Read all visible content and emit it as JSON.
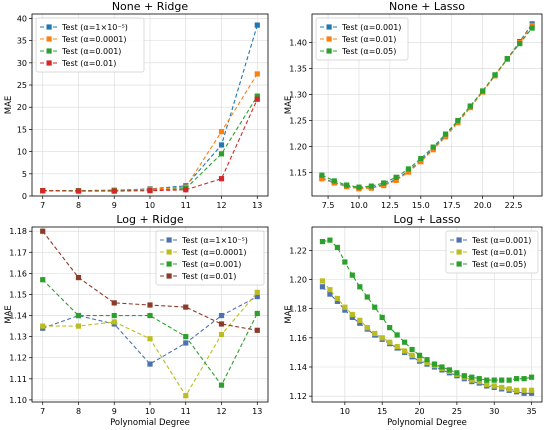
{
  "chart_data": [
    {
      "type": "line",
      "title": "None + Ridge",
      "xlabel": "",
      "ylabel": "MAE",
      "xlim": [
        6.7,
        13.3
      ],
      "ylim": [
        0,
        41
      ],
      "xticks": [
        7,
        8,
        9,
        10,
        11,
        12,
        13
      ],
      "yticks": [
        0,
        5,
        10,
        15,
        20,
        25,
        30,
        35,
        40
      ],
      "tick_decimals": [
        0,
        0
      ],
      "grid": true,
      "legend": "top-left",
      "series": [
        {
          "name": "Test (α=1×10⁻⁵)",
          "color": "#1f77b4",
          "x": [
            7,
            8,
            9,
            10,
            11,
            12,
            13
          ],
          "y": [
            1.2,
            1.2,
            1.3,
            1.6,
            2.3,
            11.5,
            38.5
          ]
        },
        {
          "name": "Test (α=0.0001)",
          "color": "#ff7f0e",
          "x": [
            7,
            8,
            9,
            10,
            11,
            12,
            13
          ],
          "y": [
            1.2,
            1.2,
            1.3,
            1.5,
            2.0,
            14.5,
            27.5
          ]
        },
        {
          "name": "Test (α=0.001)",
          "color": "#2ca02c",
          "x": [
            7,
            8,
            9,
            10,
            11,
            12,
            13
          ],
          "y": [
            1.2,
            1.2,
            1.2,
            1.3,
            1.7,
            9.5,
            22.5
          ]
        },
        {
          "name": "Test (α=0.01)",
          "color": "#d62728",
          "x": [
            7,
            8,
            9,
            10,
            11,
            12,
            13
          ],
          "y": [
            1.2,
            1.1,
            1.1,
            1.2,
            1.4,
            3.9,
            21.8
          ]
        }
      ]
    },
    {
      "type": "line",
      "title": "None + Lasso",
      "xlabel": "",
      "ylabel": "MAE",
      "xlim": [
        6.2,
        24.8
      ],
      "ylim": [
        1.105,
        1.455
      ],
      "xticks": [
        7.5,
        10.0,
        12.5,
        15.0,
        17.5,
        20.0,
        22.5
      ],
      "yticks": [
        1.15,
        1.2,
        1.25,
        1.3,
        1.35,
        1.4
      ],
      "tick_decimals": [
        1,
        2
      ],
      "grid": true,
      "legend": "top-left",
      "series": [
        {
          "name": "Test (α=0.001)",
          "color": "#1f77b4",
          "x": [
            7,
            8,
            9,
            10,
            11,
            12,
            13,
            14,
            15,
            16,
            17,
            18,
            19,
            20,
            21,
            22,
            23,
            24
          ],
          "y": [
            1.14,
            1.131,
            1.124,
            1.12,
            1.121,
            1.127,
            1.137,
            1.153,
            1.173,
            1.196,
            1.221,
            1.248,
            1.276,
            1.306,
            1.337,
            1.369,
            1.402,
            1.436
          ]
        },
        {
          "name": "Test (α=0.01)",
          "color": "#ff7f0e",
          "x": [
            7,
            8,
            9,
            10,
            11,
            12,
            13,
            14,
            15,
            16,
            17,
            18,
            19,
            20,
            21,
            22,
            23,
            24
          ],
          "y": [
            1.138,
            1.13,
            1.123,
            1.119,
            1.12,
            1.125,
            1.135,
            1.151,
            1.171,
            1.194,
            1.219,
            1.246,
            1.275,
            1.305,
            1.336,
            1.368,
            1.4,
            1.433
          ]
        },
        {
          "name": "Test (α=0.05)",
          "color": "#2ca02c",
          "x": [
            7,
            8,
            9,
            10,
            11,
            12,
            13,
            14,
            15,
            16,
            17,
            18,
            19,
            20,
            21,
            22,
            23,
            24
          ],
          "y": [
            1.145,
            1.134,
            1.126,
            1.122,
            1.124,
            1.13,
            1.141,
            1.157,
            1.177,
            1.199,
            1.224,
            1.25,
            1.278,
            1.307,
            1.338,
            1.369,
            1.398,
            1.428
          ]
        }
      ]
    },
    {
      "type": "line",
      "title": "Log + Ridge",
      "xlabel": "Polynomial Degree",
      "ylabel": "MAE",
      "xlim": [
        6.7,
        13.3
      ],
      "ylim": [
        1.099,
        1.182
      ],
      "xticks": [
        7,
        8,
        9,
        10,
        11,
        12,
        13
      ],
      "yticks": [
        1.1,
        1.11,
        1.12,
        1.13,
        1.14,
        1.15,
        1.16,
        1.17,
        1.18
      ],
      "tick_decimals": [
        0,
        2
      ],
      "grid": true,
      "legend": "top-right",
      "series": [
        {
          "name": "Test (α=1×10⁻⁵)",
          "color": "#4c72b0",
          "x": [
            7,
            8,
            9,
            10,
            11,
            12,
            13
          ],
          "y": [
            1.134,
            1.14,
            1.136,
            1.117,
            1.127,
            1.14,
            1.149
          ]
        },
        {
          "name": "Test (α=0.0001)",
          "color": "#bcbd22",
          "x": [
            7,
            8,
            9,
            10,
            11,
            12,
            13
          ],
          "y": [
            1.135,
            1.135,
            1.137,
            1.129,
            1.102,
            1.131,
            1.151
          ]
        },
        {
          "name": "Test (α=0.001)",
          "color": "#2ca02c",
          "x": [
            7,
            8,
            9,
            10,
            11,
            12,
            13
          ],
          "y": [
            1.157,
            1.14,
            1.14,
            1.14,
            1.13,
            1.107,
            1.141
          ]
        },
        {
          "name": "Test (α=0.01)",
          "color": "#8c3b2a",
          "x": [
            7,
            8,
            9,
            10,
            11,
            12,
            13
          ],
          "y": [
            1.18,
            1.158,
            1.146,
            1.145,
            1.144,
            1.136,
            1.133
          ]
        }
      ]
    },
    {
      "type": "line",
      "title": "Log + Lasso",
      "xlabel": "Polynomial Degree",
      "ylabel": "MAE",
      "xlim": [
        5.6,
        36.4
      ],
      "ylim": [
        1.116,
        1.236
      ],
      "xticks": [
        10,
        15,
        20,
        25,
        30,
        35
      ],
      "yticks": [
        1.12,
        1.14,
        1.16,
        1.18,
        1.2,
        1.22
      ],
      "tick_decimals": [
        0,
        2
      ],
      "grid": true,
      "legend": "top-right",
      "series": [
        {
          "name": "Test (α=0.001)",
          "color": "#4c72b0",
          "x": [
            7,
            8,
            9,
            10,
            11,
            12,
            13,
            14,
            15,
            16,
            17,
            18,
            19,
            20,
            21,
            22,
            23,
            24,
            25,
            26,
            27,
            28,
            29,
            30,
            31,
            32,
            33,
            34,
            35
          ],
          "y": [
            1.195,
            1.19,
            1.185,
            1.179,
            1.174,
            1.17,
            1.166,
            1.162,
            1.159,
            1.156,
            1.153,
            1.15,
            1.147,
            1.144,
            1.142,
            1.14,
            1.138,
            1.136,
            1.134,
            1.132,
            1.13,
            1.129,
            1.127,
            1.126,
            1.125,
            1.124,
            1.123,
            1.122,
            1.122
          ]
        },
        {
          "name": "Test (α=0.01)",
          "color": "#bcbd22",
          "x": [
            7,
            8,
            9,
            10,
            11,
            12,
            13,
            14,
            15,
            16,
            17,
            18,
            19,
            20,
            21,
            22,
            23,
            24,
            25,
            26,
            27,
            28,
            29,
            30,
            31,
            32,
            33,
            34,
            35
          ],
          "y": [
            1.199,
            1.193,
            1.187,
            1.181,
            1.176,
            1.172,
            1.167,
            1.163,
            1.16,
            1.157,
            1.154,
            1.151,
            1.148,
            1.145,
            1.143,
            1.141,
            1.139,
            1.137,
            1.135,
            1.133,
            1.131,
            1.13,
            1.128,
            1.127,
            1.126,
            1.125,
            1.124,
            1.124,
            1.124
          ]
        },
        {
          "name": "Test (α=0.05)",
          "color": "#2ca02c",
          "x": [
            7,
            8,
            9,
            10,
            11,
            12,
            13,
            14,
            15,
            16,
            17,
            18,
            19,
            20,
            21,
            22,
            23,
            24,
            25,
            26,
            27,
            28,
            29,
            30,
            31,
            32,
            33,
            34,
            35
          ],
          "y": [
            1.226,
            1.227,
            1.222,
            1.212,
            1.203,
            1.195,
            1.188,
            1.181,
            1.174,
            1.167,
            1.162,
            1.157,
            1.152,
            1.148,
            1.145,
            1.142,
            1.14,
            1.138,
            1.136,
            1.134,
            1.133,
            1.132,
            1.131,
            1.131,
            1.131,
            1.131,
            1.132,
            1.132,
            1.133
          ]
        }
      ]
    }
  ]
}
